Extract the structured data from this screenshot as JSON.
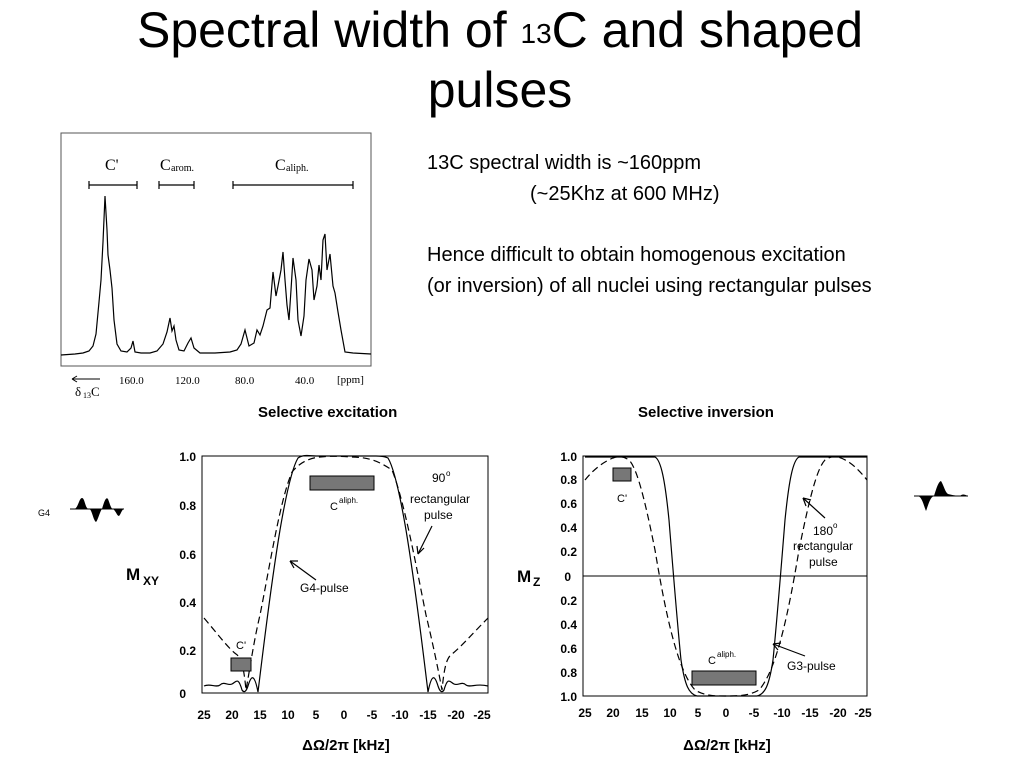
{
  "slide": {
    "title_part1": "Spectral width of ",
    "title_sup": "13",
    "title_part2": "C and shaped",
    "title_line2": "pulses",
    "text_line1": "13C spectral width is ~160ppm",
    "text_line2": "(~25Khz at 600 MHz)",
    "text_line3": "Hence difficult to obtain homogenous excitation",
    "text_line4": "(or inversion) of all nuclei using rectangular pulses"
  },
  "spectrum": {
    "region_labels": [
      "C'",
      "C",
      "arom.",
      "C",
      "aliph."
    ],
    "x_ticks": [
      "160.0",
      "120.0",
      "80.0",
      "40.0"
    ],
    "unit": "[ppm]",
    "axis_label": "δ",
    "axis_label_sub": "13",
    "axis_label_tail": "C"
  },
  "excitation_plot": {
    "title": "Selective excitation",
    "ylabel": "M",
    "ylabel_sub": "XY",
    "xlabel": "ΔΩ/2π [kHz]",
    "x_ticks": [
      "25",
      "20",
      "15",
      "10",
      "5",
      "0",
      "-5",
      "-10",
      "-15",
      "-20",
      "-25"
    ],
    "y_ticks": [
      "1.0",
      "0.8",
      "0.6",
      "0.4",
      "0.2",
      "0"
    ],
    "ann_90": "90",
    "ann_deg": "o",
    "ann_rect": "rectangular",
    "ann_pulse": "pulse",
    "ann_g4": "G4-pulse",
    "ann_cprime": "C'",
    "ann_caliph": "C",
    "ann_caliph_sup": "aliph.",
    "pulse_tag": "G4"
  },
  "inversion_plot": {
    "title": "Selective inversion",
    "ylabel": "M",
    "ylabel_sub": "Z",
    "xlabel": "ΔΩ/2π [kHz]",
    "x_ticks": [
      "25",
      "20",
      "15",
      "10",
      "5",
      "0",
      "-5",
      "-10",
      "-15",
      "-20",
      "-25"
    ],
    "y_ticks": [
      "1.0",
      "0.8",
      "0.6",
      "0.4",
      "0.2",
      "0",
      "0.2",
      "0.4",
      "0.6",
      "0.8",
      "1.0"
    ],
    "ann_180": "180",
    "ann_deg": "o",
    "ann_rect": "rectangular",
    "ann_pulse": "pulse",
    "ann_g3": "G3-pulse",
    "ann_cprime": "C'",
    "ann_caliph": "C",
    "ann_caliph_sup": "aliph."
  }
}
